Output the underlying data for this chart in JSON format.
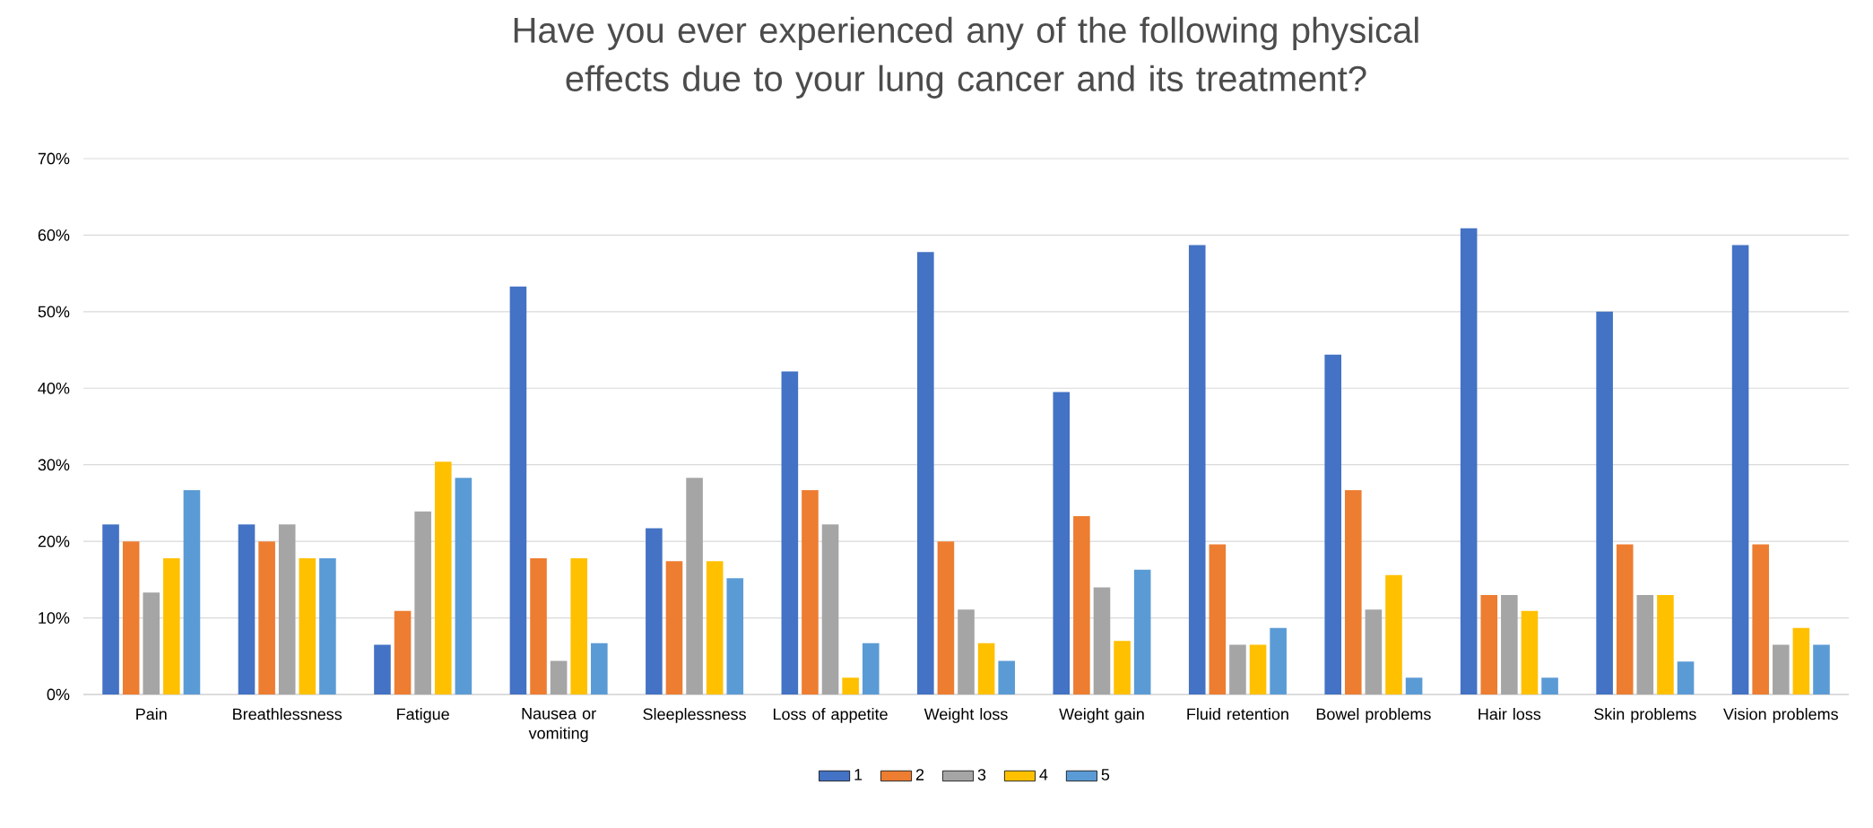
{
  "chart_data": {
    "type": "bar",
    "title": "Have you ever experienced any of the following physical effects due to your lung cancer and its treatment?",
    "categories": [
      "Pain",
      "Breathlessness",
      "Fatigue",
      "Nausea or vomiting",
      "Sleeplessness",
      "Loss of appetite",
      "Weight loss",
      "Weight gain",
      "Fluid retention",
      "Bowel problems",
      "Hair loss",
      "Skin problems",
      "Vision problems"
    ],
    "series": [
      {
        "name": "1",
        "color": "#4472c4",
        "values": [
          22.2,
          22.2,
          6.5,
          53.3,
          21.7,
          42.2,
          57.8,
          39.5,
          58.7,
          44.4,
          60.9,
          50.0,
          58.7
        ]
      },
      {
        "name": "2",
        "color": "#ed7d31",
        "values": [
          20.0,
          20.0,
          10.9,
          17.8,
          17.4,
          26.7,
          20.0,
          23.3,
          19.6,
          26.7,
          13.0,
          19.6,
          19.6
        ]
      },
      {
        "name": "3",
        "color": "#a5a5a5",
        "values": [
          13.3,
          22.2,
          23.9,
          4.4,
          28.3,
          22.2,
          11.1,
          14.0,
          6.5,
          11.1,
          13.0,
          13.0,
          6.5
        ]
      },
      {
        "name": "4",
        "color": "#ffc000",
        "values": [
          17.8,
          17.8,
          30.4,
          17.8,
          17.4,
          2.2,
          6.7,
          7.0,
          6.5,
          15.6,
          10.9,
          13.0,
          8.7
        ]
      },
      {
        "name": "5",
        "color": "#5b9bd5",
        "values": [
          26.7,
          17.8,
          28.3,
          6.7,
          15.2,
          6.7,
          4.4,
          16.3,
          8.7,
          2.2,
          2.2,
          4.3,
          6.5
        ]
      }
    ],
    "ylim": [
      0,
      70
    ],
    "yticks": [
      {
        "value": 0,
        "label": "0%"
      },
      {
        "value": 10,
        "label": "10%"
      },
      {
        "value": 20,
        "label": "20%"
      },
      {
        "value": 30,
        "label": "30%"
      },
      {
        "value": 40,
        "label": "40%"
      },
      {
        "value": 50,
        "label": "50%"
      },
      {
        "value": 60,
        "label": "60%"
      },
      {
        "value": 70,
        "label": "70%"
      }
    ],
    "grid": "y",
    "legend": "bottom"
  }
}
